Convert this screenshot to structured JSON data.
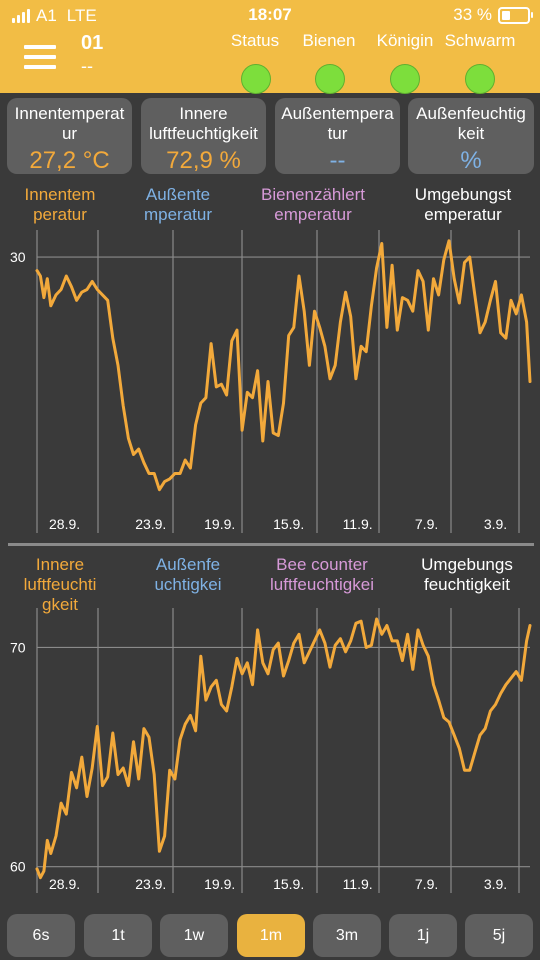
{
  "status_bar": {
    "carrier": "A1",
    "network": "LTE",
    "time": "18:07",
    "battery": "33 %",
    "battery_level": 0.33
  },
  "header": {
    "hive_id": "01",
    "hive_sub": "--",
    "status_items": [
      {
        "label": "Status",
        "state": "ok"
      },
      {
        "label": "Bienen",
        "state": "ok"
      },
      {
        "label": "Königin",
        "state": "ok"
      },
      {
        "label": "Schwarm",
        "state": "ok"
      }
    ],
    "ok_color": "#7dde3c"
  },
  "cards": [
    {
      "label_lines": [
        "Innentemperat",
        "ur"
      ],
      "value": "27,2 °C",
      "color": "#f2a93b"
    },
    {
      "label_lines": [
        "Innere",
        "luftfeuchtigkeit"
      ],
      "value": "72,9 %",
      "color": "#f2a93b"
    },
    {
      "label_lines": [
        "Außentempera",
        "tur"
      ],
      "value": "--",
      "color": "#7fb2e5"
    },
    {
      "label_lines": [
        "Außenfeuchtig",
        "keit"
      ],
      "value": "%",
      "color": "#7fb2e5"
    }
  ],
  "colors": {
    "inside": "#f2a93b",
    "outside": "#7fb2e5",
    "counter": "#d79ad8",
    "ambient": "#ffffff",
    "grid": "#8a8a8a"
  },
  "chart_data": [
    {
      "type": "line",
      "legend": [
        {
          "lines": [
            "Innentem",
            "peratur"
          ],
          "color_key": "inside"
        },
        {
          "lines": [
            "Außente",
            "mperatur"
          ],
          "color_key": "outside"
        },
        {
          "lines": [
            "Bienenzählert",
            "emperatur"
          ],
          "color_key": "counter"
        },
        {
          "lines": [
            "Umgebungst",
            "emperatur"
          ],
          "color_key": "ambient"
        }
      ],
      "x_ticks": [
        "3.9.",
        "7.9.",
        "11.9.",
        "15.9.",
        "19.9.",
        "23.9.",
        "28.9."
      ],
      "x_tick_days": [
        3,
        7,
        11,
        15,
        19,
        23,
        28
      ],
      "x_range_days": [
        29.6,
        1.0
      ],
      "y_ticks": [
        "30"
      ],
      "y_tick_values": [
        30
      ],
      "ylim": [
        19.8,
        31
      ],
      "series": [
        {
          "color_key": "inside",
          "x": [
            29.6,
            29.4,
            29.2,
            29.0,
            28.8,
            28.5,
            28.2,
            27.9,
            27.6,
            27.3,
            27.0,
            26.7,
            26.4,
            26.1,
            25.8,
            25.5,
            25.2,
            24.9,
            24.6,
            24.3,
            24.0,
            23.7,
            23.4,
            23.1,
            22.8,
            22.5,
            22.2,
            21.9,
            21.6,
            21.3,
            21.0,
            20.7,
            20.4,
            20.1,
            19.8,
            19.5,
            19.2,
            18.9,
            18.6,
            18.3,
            18.0,
            17.7,
            17.4,
            17.1,
            16.8,
            16.5,
            16.2,
            15.9,
            15.6,
            15.3,
            15.0,
            14.7,
            14.4,
            14.1,
            13.8,
            13.5,
            13.2,
            12.9,
            12.6,
            12.3,
            12.0,
            11.7,
            11.4,
            11.1,
            10.8,
            10.5,
            10.2,
            9.9,
            9.6,
            9.3,
            9.0,
            8.7,
            8.4,
            8.1,
            7.8,
            7.5,
            7.2,
            6.9,
            6.6,
            6.3,
            6.0,
            5.7,
            5.4,
            5.1,
            4.8,
            4.5,
            4.2,
            3.9,
            3.6,
            3.3,
            3.0,
            2.7,
            2.4,
            2.1,
            1.8,
            1.5,
            1.2,
            1.0
          ],
          "y": [
            29.5,
            29.3,
            28.5,
            29.2,
            28.2,
            28.6,
            28.8,
            29.3,
            28.9,
            28.4,
            28.7,
            28.8,
            29.1,
            28.8,
            28.6,
            28.4,
            27.0,
            26.0,
            24.5,
            23.3,
            22.7,
            22.9,
            22.4,
            22.0,
            22.0,
            21.4,
            21.7,
            21.8,
            22.0,
            22.0,
            22.5,
            22.2,
            23.8,
            24.6,
            24.8,
            26.8,
            25.2,
            25.3,
            24.9,
            26.9,
            27.3,
            23.6,
            25.0,
            24.8,
            25.8,
            23.2,
            25.4,
            23.5,
            23.4,
            24.6,
            27.1,
            27.4,
            29.3,
            28.0,
            26.0,
            28.0,
            27.4,
            26.7,
            25.5,
            26.0,
            27.6,
            28.7,
            27.8,
            25.5,
            26.7,
            26.5,
            28.2,
            29.6,
            30.5,
            27.4,
            29.7,
            27.3,
            28.5,
            28.4,
            28.0,
            29.5,
            29.1,
            27.3,
            29.2,
            28.6,
            29.9,
            30.6,
            29.2,
            28.3,
            29.8,
            30.0,
            28.6,
            27.2,
            27.6,
            28.4,
            29.1,
            27.2,
            27.0,
            28.4,
            27.9,
            28.6,
            27.6,
            25.4
          ]
        }
      ]
    },
    {
      "type": "line",
      "legend": [
        {
          "lines": [
            "Innere",
            "luftfeuchti",
            "gkeit"
          ],
          "color_key": "inside"
        },
        {
          "lines": [
            "Außenfe",
            "uchtigkei"
          ],
          "color_key": "outside"
        },
        {
          "lines": [
            "Bee counter",
            "luftfeuchtigkei"
          ],
          "color_key": "counter"
        },
        {
          "lines": [
            "Umgebungs",
            "feuchtigkeit"
          ],
          "color_key": "ambient"
        }
      ],
      "x_ticks": [
        "3.9.",
        "7.9.",
        "11.9.",
        "15.9.",
        "19.9.",
        "23.9.",
        "28.9."
      ],
      "x_tick_days": [
        3,
        7,
        11,
        15,
        19,
        23,
        28
      ],
      "x_range_days": [
        29.6,
        1.0
      ],
      "y_ticks": [
        "70",
        "60"
      ],
      "y_tick_values": [
        70,
        60
      ],
      "ylim": [
        58.8,
        71.8
      ],
      "series": [
        {
          "color_key": "inside",
          "x": [
            29.6,
            29.4,
            29.2,
            29.0,
            28.8,
            28.5,
            28.2,
            27.9,
            27.6,
            27.3,
            27.0,
            26.7,
            26.4,
            26.1,
            25.8,
            25.5,
            25.2,
            24.9,
            24.6,
            24.3,
            24.0,
            23.7,
            23.4,
            23.1,
            22.8,
            22.5,
            22.2,
            21.9,
            21.6,
            21.3,
            21.0,
            20.7,
            20.4,
            20.1,
            19.8,
            19.5,
            19.2,
            18.9,
            18.6,
            18.3,
            18.0,
            17.7,
            17.4,
            17.1,
            16.8,
            16.5,
            16.2,
            15.9,
            15.6,
            15.3,
            15.0,
            14.7,
            14.4,
            14.1,
            13.8,
            13.5,
            13.2,
            12.9,
            12.6,
            12.3,
            12.0,
            11.7,
            11.4,
            11.1,
            10.8,
            10.5,
            10.2,
            9.9,
            9.6,
            9.3,
            9.0,
            8.7,
            8.4,
            8.1,
            7.8,
            7.5,
            7.2,
            6.9,
            6.6,
            6.3,
            6.0,
            5.7,
            5.4,
            5.1,
            4.8,
            4.5,
            4.2,
            3.9,
            3.6,
            3.3,
            3.0,
            2.7,
            2.4,
            2.1,
            1.8,
            1.5,
            1.2,
            1.0
          ],
          "y": [
            59.9,
            59.5,
            59.8,
            61.2,
            60.6,
            61.4,
            62.9,
            62.4,
            64.3,
            63.6,
            65.0,
            63.2,
            64.5,
            66.4,
            63.7,
            64.1,
            66.1,
            64.2,
            64.5,
            63.7,
            65.7,
            64.0,
            66.3,
            65.9,
            64.2,
            60.7,
            61.4,
            64.4,
            64.0,
            65.8,
            66.5,
            66.9,
            66.2,
            69.6,
            67.6,
            68.2,
            68.5,
            67.4,
            67.1,
            68.2,
            69.5,
            68.8,
            69.3,
            68.3,
            70.8,
            69.3,
            68.8,
            69.9,
            70.2,
            68.7,
            69.4,
            70.2,
            70.6,
            69.3,
            69.8,
            70.3,
            70.8,
            70.2,
            69.1,
            70.1,
            70.4,
            69.8,
            70.3,
            71.1,
            71.2,
            70.0,
            70.1,
            71.3,
            70.6,
            71.0,
            70.3,
            70.3,
            69.4,
            70.6,
            69.0,
            70.8,
            70.1,
            69.6,
            68.3,
            67.6,
            66.8,
            66.6,
            66.0,
            65.4,
            64.4,
            64.4,
            65.2,
            66.0,
            66.3,
            67.1,
            67.4,
            67.9,
            68.3,
            68.6,
            68.9,
            68.5,
            70.3,
            71.0
          ]
        }
      ]
    }
  ],
  "ranges": [
    {
      "label": "6s",
      "active": false
    },
    {
      "label": "1t",
      "active": false
    },
    {
      "label": "1w",
      "active": false
    },
    {
      "label": "1m",
      "active": true
    },
    {
      "label": "3m",
      "active": false
    },
    {
      "label": "1j",
      "active": false
    },
    {
      "label": "5j",
      "active": false
    }
  ]
}
